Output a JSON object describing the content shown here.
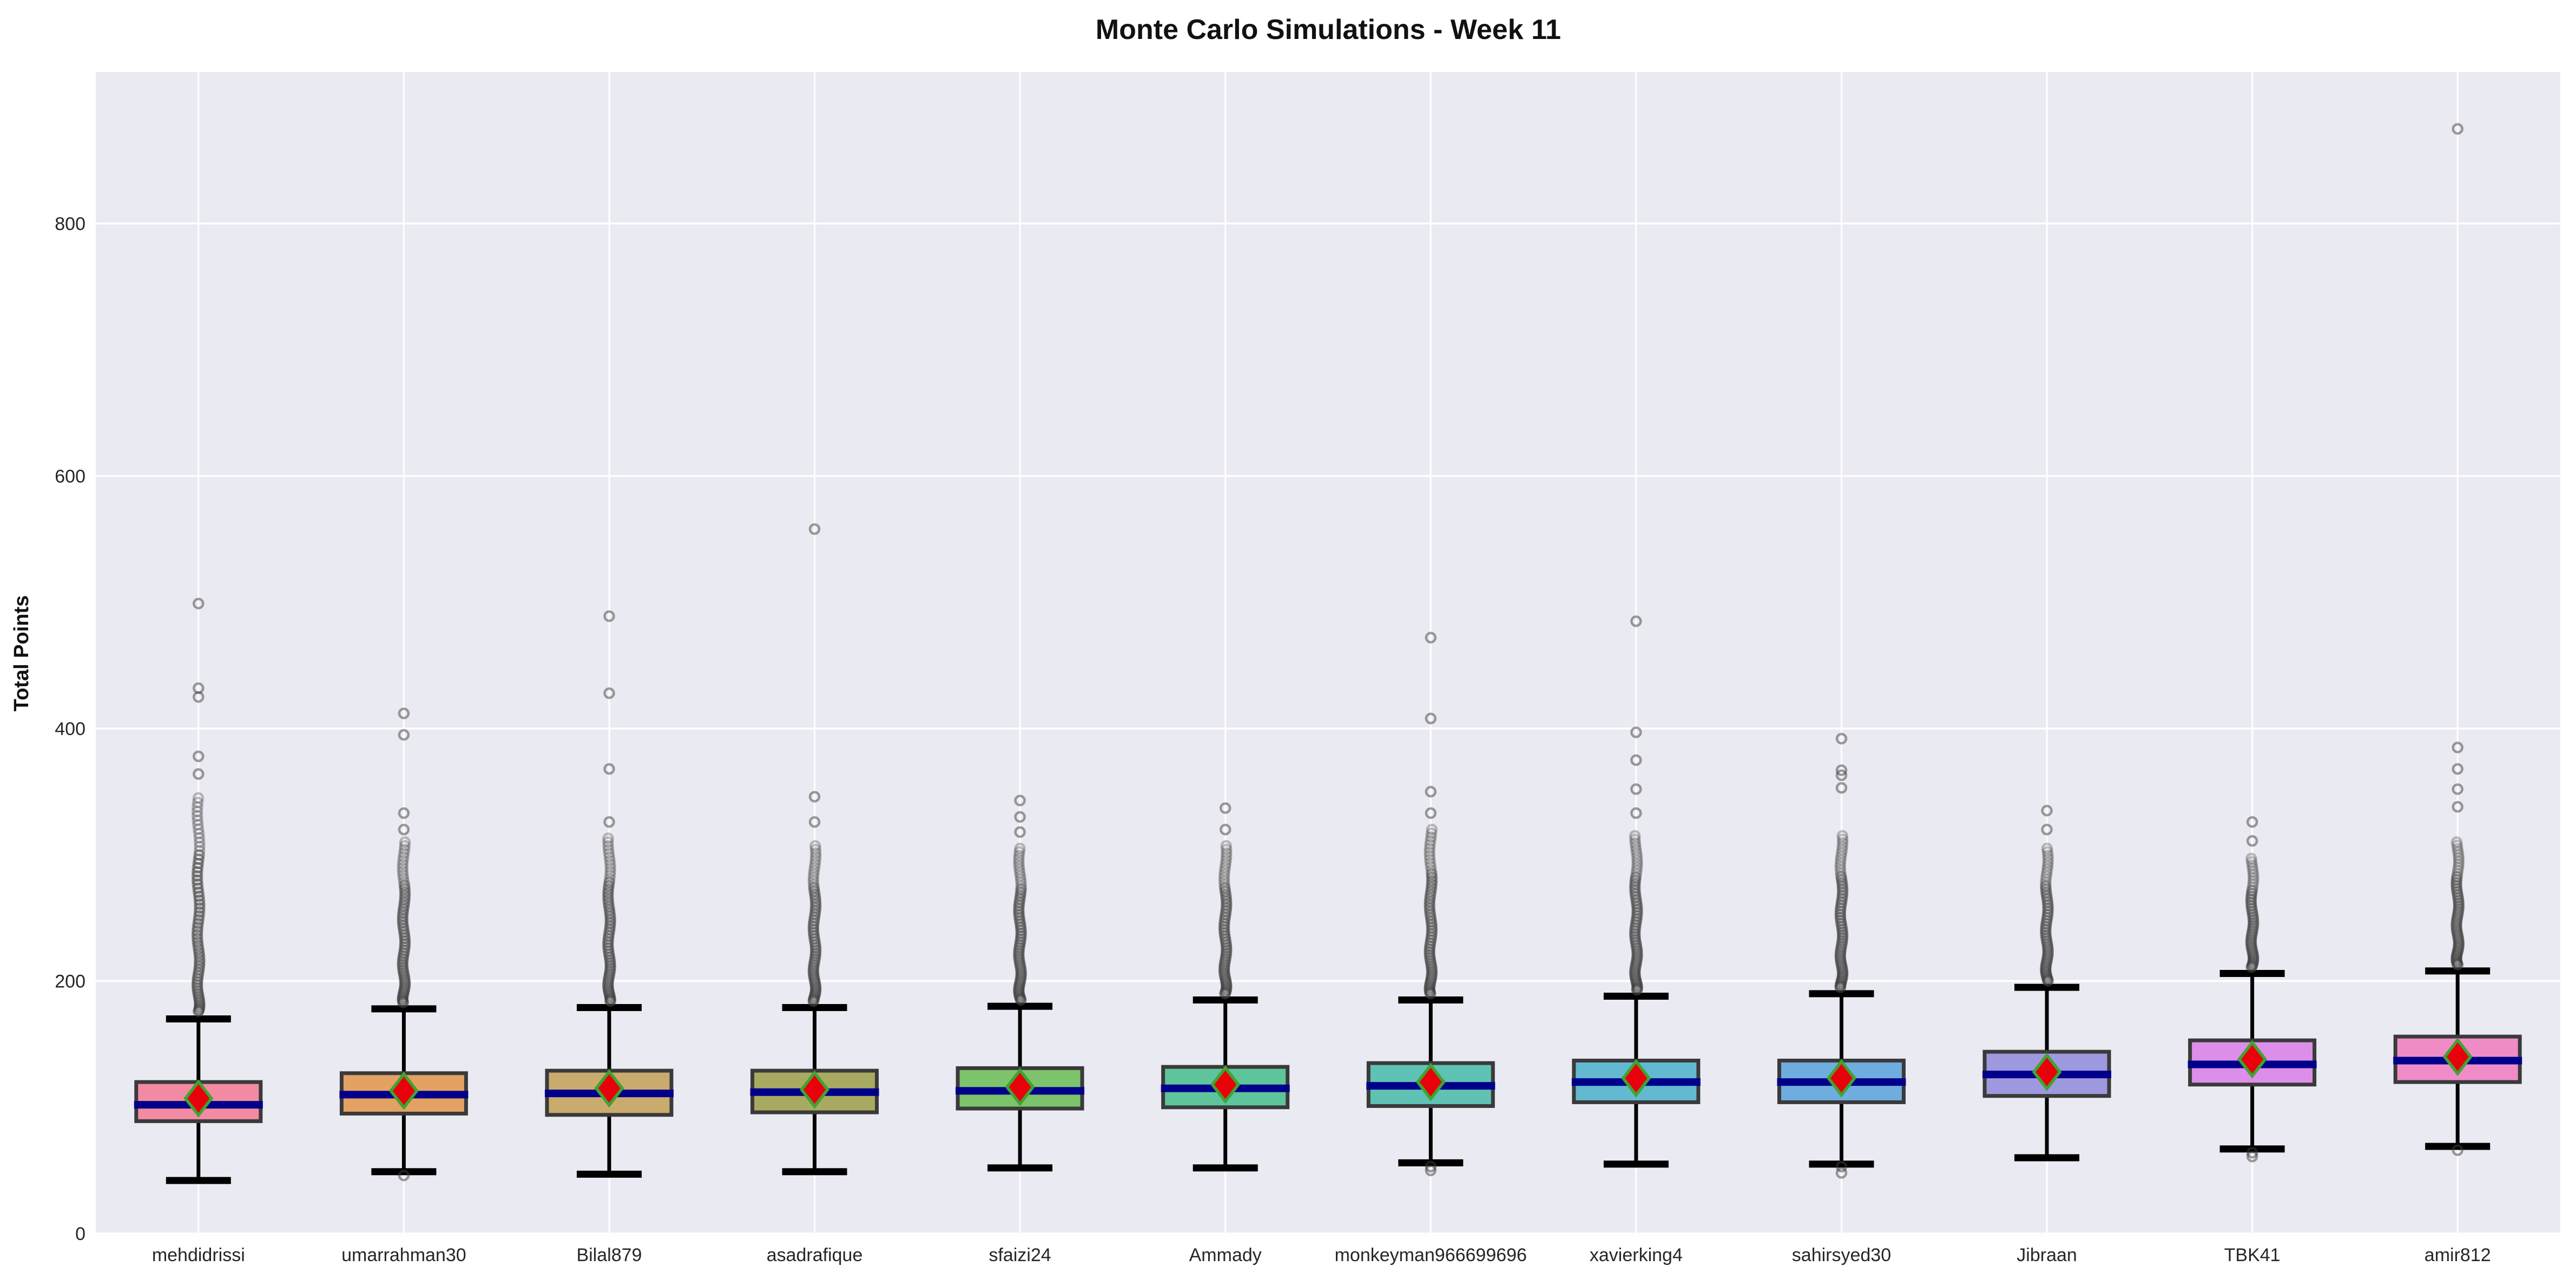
{
  "title": "Monte Carlo Simulations - Week 11",
  "y_axis": {
    "label": "Total Points",
    "ticks": [
      "0",
      "200",
      "400",
      "600",
      "800"
    ]
  },
  "chart_data": {
    "type": "box",
    "title": "Monte Carlo Simulations - Week 11",
    "xlabel": "",
    "ylabel": "Total Points",
    "ylim": [
      -1,
      920
    ],
    "yticks": [
      0,
      200,
      400,
      600,
      800
    ],
    "grid": {
      "background": "#eaeaf2",
      "gridline_color": "#ffffff",
      "horizontal_at_yticks": true,
      "vertical_at_categories": true
    },
    "style": {
      "box_edge_color": "#3a3a3a",
      "median_color": "#00008b",
      "whisker_color": "#000000",
      "mean_marker": "diamond",
      "mean_fill": "#e8000b",
      "mean_edge": "#3fa431",
      "outlier_color": "#3f3f3f"
    },
    "categories": [
      "mehdidrissi",
      "umarrahman30",
      "Bilal879",
      "asadrafique",
      "sfaizi24",
      "Ammady",
      "monkeyman966699696",
      "xavierking4",
      "sahirsyed30",
      "Jibraan",
      "TBK41",
      "amir812"
    ],
    "series": [
      {
        "name": "mehdidrissi",
        "color": "#f28ba2",
        "whisker_low": 42,
        "q1": 89,
        "median": 102,
        "q3": 120,
        "whisker_high": 170,
        "mean": 107,
        "outliers_high": [
          499,
          432,
          425,
          378,
          364
        ],
        "outlier_band_high": {
          "from": 176,
          "to": 345,
          "count": 60
        },
        "outliers_low": []
      },
      {
        "name": "umarrahman30",
        "color": "#e3a263",
        "whisker_low": 49,
        "q1": 95,
        "median": 110,
        "q3": 127,
        "whisker_high": 178,
        "mean": 113,
        "outliers_high": [
          412,
          395,
          333,
          320
        ],
        "outlier_band_high": {
          "from": 183,
          "to": 310,
          "count": 55
        },
        "outliers_low": [
          46
        ]
      },
      {
        "name": "Bilal879",
        "color": "#c9ab6e",
        "whisker_low": 47,
        "q1": 94,
        "median": 111,
        "q3": 129,
        "whisker_high": 179,
        "mean": 115,
        "outliers_high": [
          489,
          428,
          368,
          326
        ],
        "outlier_band_high": {
          "from": 184,
          "to": 313,
          "count": 55
        },
        "outliers_low": []
      },
      {
        "name": "asadrafique",
        "color": "#a9aa61",
        "whisker_low": 49,
        "q1": 96,
        "median": 112,
        "q3": 129,
        "whisker_high": 179,
        "mean": 114,
        "outliers_high": [
          558,
          346,
          326
        ],
        "outlier_band_high": {
          "from": 184,
          "to": 307,
          "count": 55
        },
        "outliers_low": []
      },
      {
        "name": "sfaizi24",
        "color": "#7cc36b",
        "whisker_low": 52,
        "q1": 99,
        "median": 113,
        "q3": 131,
        "whisker_high": 180,
        "mean": 116,
        "outliers_high": [
          343,
          330,
          318
        ],
        "outlier_band_high": {
          "from": 185,
          "to": 305,
          "count": 55
        },
        "outliers_low": []
      },
      {
        "name": "Ammady",
        "color": "#5ec49c",
        "whisker_low": 52,
        "q1": 100,
        "median": 115,
        "q3": 132,
        "whisker_high": 185,
        "mean": 118,
        "outliers_high": [
          337,
          320
        ],
        "outlier_band_high": {
          "from": 190,
          "to": 307,
          "count": 52
        },
        "outliers_low": []
      },
      {
        "name": "monkeyman966699696",
        "color": "#5fc2b4",
        "whisker_low": 56,
        "q1": 101,
        "median": 117,
        "q3": 135,
        "whisker_high": 185,
        "mean": 120,
        "outliers_high": [
          472,
          408,
          350,
          333
        ],
        "outlier_band_high": {
          "from": 190,
          "to": 320,
          "count": 55
        },
        "outliers_low": [
          53,
          50
        ]
      },
      {
        "name": "xavierking4",
        "color": "#63b9cf",
        "whisker_low": 55,
        "q1": 104,
        "median": 120,
        "q3": 137,
        "whisker_high": 188,
        "mean": 123,
        "outliers_high": [
          485,
          397,
          375,
          352,
          333
        ],
        "outlier_band_high": {
          "from": 193,
          "to": 315,
          "count": 55
        },
        "outliers_low": []
      },
      {
        "name": "sahirsyed30",
        "color": "#6fadde",
        "whisker_low": 55,
        "q1": 104,
        "median": 120,
        "q3": 137,
        "whisker_high": 190,
        "mean": 123,
        "outliers_high": [
          392,
          367,
          363,
          353
        ],
        "outlier_band_high": {
          "from": 195,
          "to": 315,
          "count": 55
        },
        "outliers_low": [
          53,
          48
        ]
      },
      {
        "name": "Jibraan",
        "color": "#9e98de",
        "whisker_low": 60,
        "q1": 109,
        "median": 126,
        "q3": 144,
        "whisker_high": 195,
        "mean": 128,
        "outliers_high": [
          335,
          320
        ],
        "outlier_band_high": {
          "from": 200,
          "to": 305,
          "count": 48
        },
        "outliers_low": []
      },
      {
        "name": "TBK41",
        "color": "#dc8ee9",
        "whisker_low": 67,
        "q1": 118,
        "median": 134,
        "q3": 153,
        "whisker_high": 206,
        "mean": 138,
        "outliers_high": [
          326,
          311
        ],
        "outlier_band_high": {
          "from": 211,
          "to": 297,
          "count": 42
        },
        "outliers_low": [
          64,
          61
        ]
      },
      {
        "name": "amir812",
        "color": "#ef8cc8",
        "whisker_low": 69,
        "q1": 120,
        "median": 137,
        "q3": 156,
        "whisker_high": 208,
        "mean": 140,
        "outliers_high": [
          875,
          385,
          368,
          352,
          338
        ],
        "outlier_band_high": {
          "from": 213,
          "to": 310,
          "count": 48
        },
        "outliers_low": [
          66
        ]
      }
    ]
  }
}
